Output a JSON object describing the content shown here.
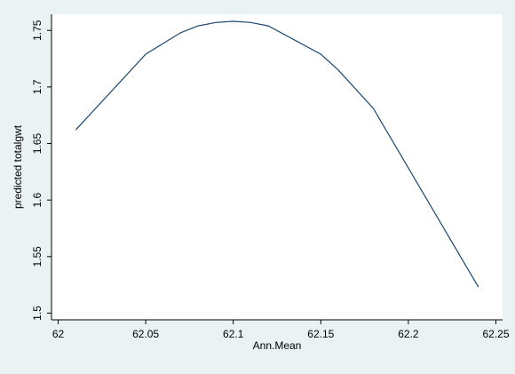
{
  "chart_data": {
    "type": "line",
    "title": "",
    "xlabel": "Ann.Mean",
    "ylabel": "predicted totalgwt",
    "xlim": [
      62.0,
      62.25
    ],
    "ylim": [
      1.5,
      1.76
    ],
    "x_ticks": [
      62,
      62.05,
      62.1,
      62.15,
      62.2,
      62.25
    ],
    "x_tick_labels": [
      "62",
      "62.05",
      "62.1",
      "62.15",
      "62.2",
      "62.25"
    ],
    "y_ticks": [
      1.5,
      1.55,
      1.6,
      1.65,
      1.7,
      1.75
    ],
    "y_tick_labels": [
      "1.5",
      "1.55",
      "1.6",
      "1.65",
      "1.7",
      "1.75"
    ],
    "grid": false,
    "series": [
      {
        "x": [
          62.01,
          62.05,
          62.07,
          62.08,
          62.09,
          62.1,
          62.11,
          62.12,
          62.15,
          62.16,
          62.18,
          62.24
        ],
        "y": [
          1.662,
          1.729,
          1.748,
          1.754,
          1.757,
          1.758,
          1.757,
          1.754,
          1.729,
          1.715,
          1.681,
          1.523
        ]
      }
    ]
  },
  "colors": {
    "background": "#eaf2f3",
    "plot_area": "#ffffff",
    "line": "#1a476f"
  }
}
